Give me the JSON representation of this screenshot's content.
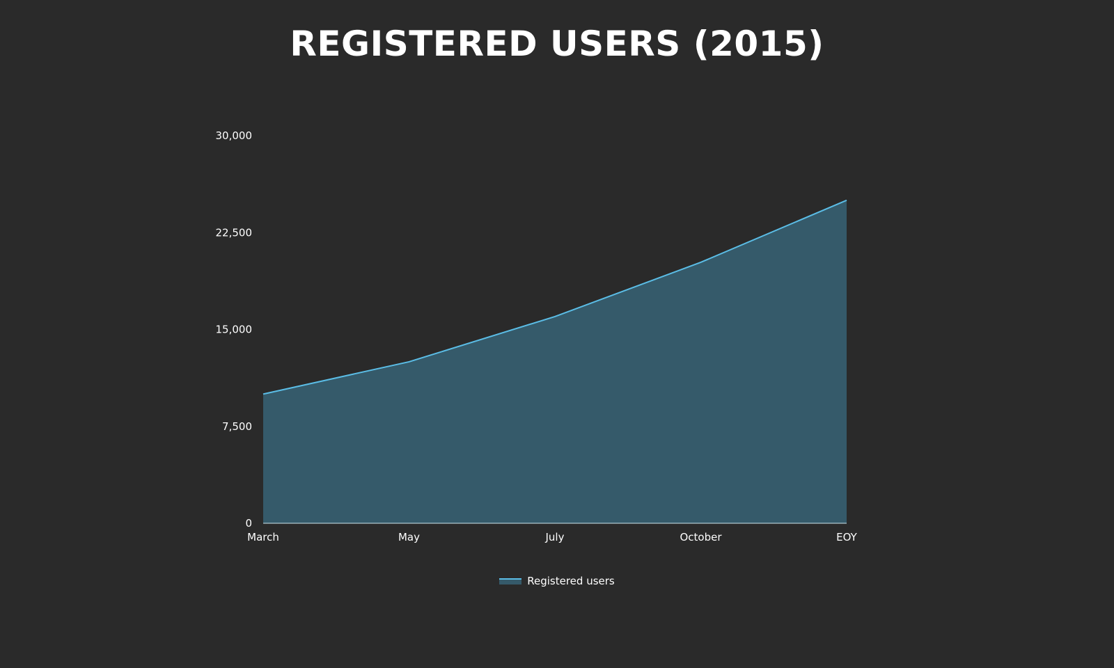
{
  "chart_data": {
    "type": "area",
    "title": "REGISTERED USERS (2015)",
    "categories": [
      "March",
      "May",
      "July",
      "October",
      "EOY"
    ],
    "series": [
      {
        "name": "Registered users",
        "values": [
          10000,
          12500,
          16000,
          20200,
          25000
        ]
      }
    ],
    "y_ticks": [
      0,
      7500,
      15000,
      22500,
      30000
    ],
    "y_tick_labels": [
      "0",
      "7,500",
      "15,000",
      "22,500",
      "30,000"
    ],
    "ylim": [
      0,
      30000
    ],
    "xlabel": "",
    "ylabel": "",
    "grid": false,
    "legend_position": "bottom-center",
    "colors": {
      "background": "#2a2a2a",
      "line": "#5bbde6",
      "fill": "#355a6a",
      "text": "#ffffff"
    }
  }
}
